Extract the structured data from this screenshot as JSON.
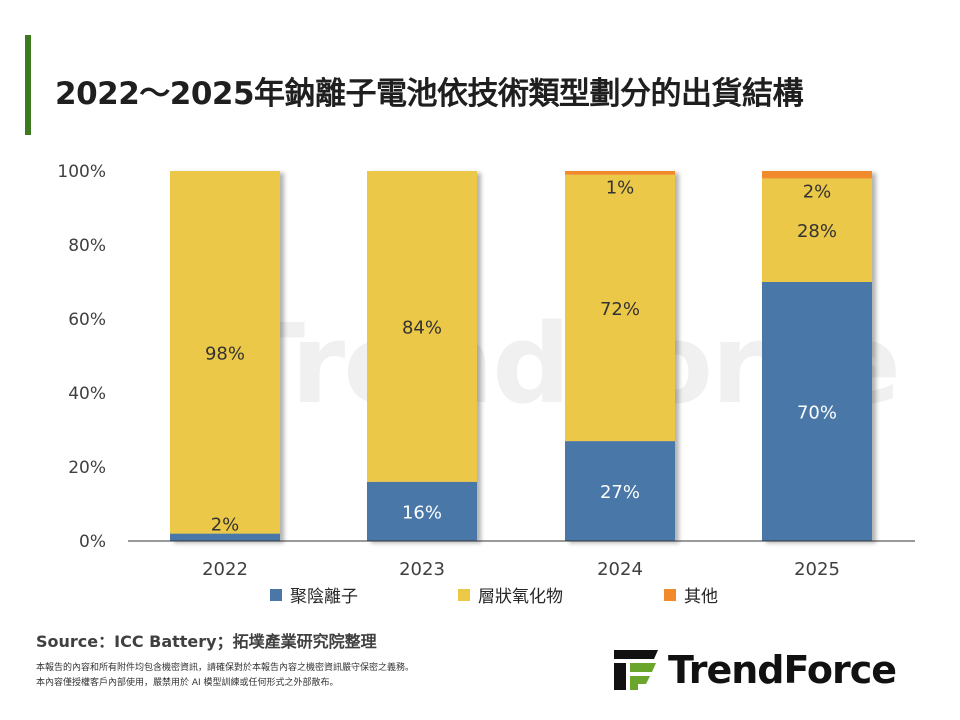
{
  "title": "2022～2025年鈉離子電池依技術類型劃分的出貨結構",
  "source": "Source：ICC Battery；拓墣產業研究院整理",
  "notes": [
    "本報告的內容和所有附件均包含機密資訊，請確保對於本報告內容之機密資訊嚴守保密之義務。",
    "本內容僅授權客戶內部使用，嚴禁用於 AI 模型訓練或任何形式之外部散布。"
  ],
  "logo_text": "TrendForce",
  "watermark": "TrendForce",
  "chart_data": {
    "type": "bar",
    "stacked": true,
    "categories": [
      "2022",
      "2023",
      "2024",
      "2025"
    ],
    "series": [
      {
        "name": "聚陰離子",
        "color": "#4a77a8",
        "values": [
          2,
          16,
          27,
          70
        ],
        "labels": [
          "2%",
          "16%",
          "27%",
          "70%"
        ]
      },
      {
        "name": "層狀氧化物",
        "color": "#ebc846",
        "values": [
          98,
          84,
          72,
          28
        ],
        "labels": [
          "98%",
          "84%",
          "72%",
          "28%"
        ]
      },
      {
        "name": "其他",
        "color": "#f08a2b",
        "values": [
          0,
          0,
          1,
          2
        ],
        "labels": [
          "",
          "",
          "1%",
          "2%"
        ]
      }
    ],
    "ylim": [
      0,
      100
    ],
    "yticks": [
      "0%",
      "20%",
      "40%",
      "60%",
      "80%",
      "100%"
    ],
    "grid": false,
    "legend": "bottom"
  }
}
